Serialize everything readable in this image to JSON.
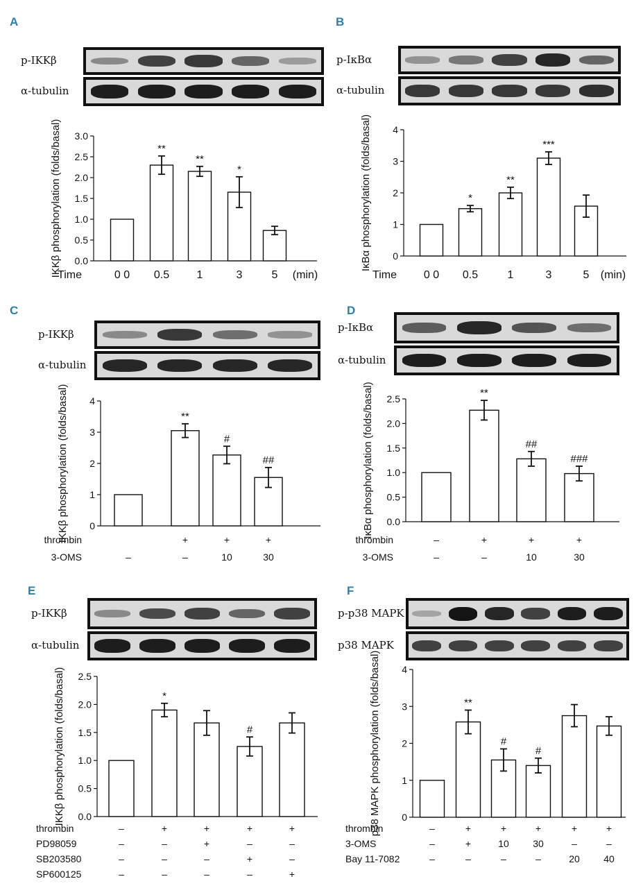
{
  "chart_data": [
    {
      "panel": "A",
      "type": "bar",
      "blots": [
        "p-IKKβ",
        "α-tubulin"
      ],
      "ylabel": "IKKβ phosphorylation (folds/basal)",
      "ylim": [
        0,
        3.0
      ],
      "yticks": [
        "0.0",
        "0.5",
        "1.0",
        "1.5",
        "2.0",
        "2.5",
        "3.0"
      ],
      "xrow_label": "Time",
      "categories": [
        "0 0",
        "0.5",
        "1",
        "3",
        "5"
      ],
      "unit": "(min)",
      "values": [
        1.0,
        2.3,
        2.15,
        1.65,
        0.73
      ],
      "errors": [
        0,
        0.22,
        0.12,
        0.37,
        0.1
      ],
      "annotations": [
        "",
        "**",
        "**",
        "*",
        ""
      ]
    },
    {
      "panel": "B",
      "type": "bar",
      "blots": [
        "p-IκBα",
        "α-tubulin"
      ],
      "ylabel": "IκBα phosphorylation (folds/basal)",
      "ylim": [
        0,
        4
      ],
      "yticks": [
        "0",
        "1",
        "2",
        "3",
        "4"
      ],
      "xrow_label": "Time",
      "categories": [
        "0 0",
        "0.5",
        "1",
        "3",
        "5"
      ],
      "unit": "(min)",
      "values": [
        1.0,
        1.5,
        2.0,
        3.1,
        1.58
      ],
      "errors": [
        0,
        0.1,
        0.18,
        0.2,
        0.35
      ],
      "annotations": [
        "",
        "*",
        "**",
        "***",
        ""
      ]
    },
    {
      "panel": "C",
      "type": "bar",
      "blots": [
        "p-IKKβ",
        "α-tubulin"
      ],
      "ylabel": "IKKβ phosphorylation (folds/basal)",
      "ylim": [
        0,
        4
      ],
      "yticks": [
        "0",
        "1",
        "2",
        "3",
        "4"
      ],
      "treatments": [
        {
          "label": "thrombin",
          "cells": [
            "",
            "+",
            "+",
            "+"
          ]
        },
        {
          "label": "3-OMS",
          "cells": [
            "–",
            "–",
            "10",
            "30"
          ]
        }
      ],
      "values": [
        1.0,
        3.05,
        2.27,
        1.55
      ],
      "errors": [
        0,
        0.22,
        0.28,
        0.32
      ],
      "annotations": [
        "",
        "**",
        "#",
        "##"
      ]
    },
    {
      "panel": "D",
      "type": "bar",
      "blots": [
        "p-IκBα",
        "α-tubulin"
      ],
      "ylabel": "IκBα phosphorylation (folds/basal)",
      "ylim": [
        0,
        2.5
      ],
      "yticks": [
        "0.0",
        "0.5",
        "1.0",
        "1.5",
        "2.0",
        "2.5"
      ],
      "treatments": [
        {
          "label": "thrombin",
          "cells": [
            "–",
            "+",
            "+",
            "+"
          ]
        },
        {
          "label": "3-OMS",
          "cells": [
            "–",
            "–",
            "10",
            "30"
          ]
        }
      ],
      "values": [
        1.0,
        2.27,
        1.28,
        0.98
      ],
      "errors": [
        0,
        0.2,
        0.15,
        0.15
      ],
      "annotations": [
        "",
        "**",
        "##",
        "###"
      ]
    },
    {
      "panel": "E",
      "type": "bar",
      "blots": [
        "p-IKKβ",
        "α-tubulin"
      ],
      "ylabel": "IKKβ phosphorylation (folds/basal)",
      "ylim": [
        0,
        2.5
      ],
      "yticks": [
        "0.0",
        "0.5",
        "1.0",
        "1.5",
        "2.0",
        "2.5"
      ],
      "treatments": [
        {
          "label": "thrombin",
          "cells": [
            "–",
            "+",
            "+",
            "+",
            "+"
          ]
        },
        {
          "label": "PD98059",
          "cells": [
            "–",
            "–",
            "+",
            "–",
            "–"
          ]
        },
        {
          "label": "SB203580",
          "cells": [
            "–",
            "–",
            "–",
            "+",
            "–"
          ]
        },
        {
          "label": "SP600125",
          "cells": [
            "–",
            "–",
            "–",
            "–",
            "+"
          ]
        }
      ],
      "values": [
        1.0,
        1.9,
        1.67,
        1.25,
        1.67
      ],
      "errors": [
        0,
        0.12,
        0.22,
        0.17,
        0.18
      ],
      "annotations": [
        "",
        "*",
        "",
        "#",
        ""
      ]
    },
    {
      "panel": "F",
      "type": "bar",
      "blots": [
        "p-p38 MAPK",
        "p38 MAPK"
      ],
      "ylabel": "p38 MAPK phosphorylation (folds/basal)",
      "ylim": [
        0,
        4
      ],
      "yticks": [
        "0",
        "1",
        "2",
        "3",
        "4"
      ],
      "treatments": [
        {
          "label": "thrombin",
          "cells": [
            "–",
            "+",
            "+",
            "+",
            "+",
            "+"
          ]
        },
        {
          "label": "3-OMS",
          "cells": [
            "–",
            "+",
            "10",
            "30",
            "–",
            "–"
          ]
        },
        {
          "label": "Bay 11-7082",
          "cells": [
            "–",
            "–",
            "–",
            "–",
            "20",
            "40"
          ]
        }
      ],
      "values": [
        1.0,
        2.58,
        1.55,
        1.4,
        2.75,
        2.47
      ],
      "errors": [
        0,
        0.32,
        0.3,
        0.2,
        0.3,
        0.25
      ],
      "annotations": [
        "",
        "**",
        "#",
        "#",
        "",
        ""
      ]
    }
  ]
}
